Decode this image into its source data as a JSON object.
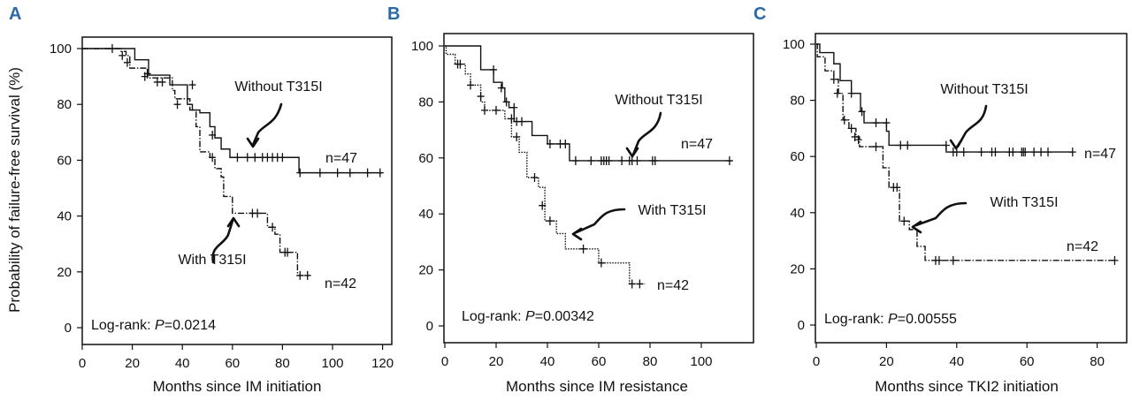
{
  "colors": {
    "panel_letter": "#2a6aa6",
    "ink": "#111111"
  },
  "chart_data": [
    {
      "type": "line",
      "panel": "A",
      "ylabel": "Probability of failure-free survival (%)",
      "xlabel": "Months since IM initiation",
      "xlim": [
        0,
        120
      ],
      "ylim": [
        0,
        100
      ],
      "xticks": [
        "0",
        "20",
        "40",
        "60",
        "80",
        "100",
        "120"
      ],
      "yticks": [
        "0",
        "20",
        "40",
        "60",
        "80",
        "100"
      ],
      "annotation": "Log-rank: ",
      "p_label": "P",
      "p_value": "=0.0214",
      "series": [
        {
          "name": "Without T315I",
          "n_label": "n=47",
          "style": "solid",
          "end": 120,
          "steps": [
            [
              21,
              96
            ],
            [
              26.5,
              90.5
            ],
            [
              35,
              87
            ],
            [
              42,
              80
            ],
            [
              44,
              78
            ],
            [
              47,
              77
            ],
            [
              51,
              72
            ],
            [
              53,
              68
            ],
            [
              55.5,
              64
            ],
            [
              59,
              61
            ],
            [
              86.6,
              55.5
            ]
          ],
          "censored": [
            [
              12,
              100
            ],
            [
              26,
              91
            ],
            [
              44,
              87
            ],
            [
              52,
              69
            ],
            [
              62,
              61
            ],
            [
              66,
              61
            ],
            [
              69,
              61
            ],
            [
              72,
              61
            ],
            [
              74,
              61
            ],
            [
              76,
              61
            ],
            [
              78,
              61
            ],
            [
              80,
              61
            ],
            [
              87,
              55.5
            ],
            [
              95,
              55.5
            ],
            [
              102,
              55.5
            ],
            [
              107,
              55.5
            ],
            [
              114,
              55.5
            ],
            [
              119,
              55.5
            ]
          ]
        },
        {
          "name": "With T315I",
          "n_label": "n=42",
          "style": "dashdot",
          "end": 91,
          "steps": [
            [
              15.5,
              99
            ],
            [
              17.5,
              97.5
            ],
            [
              19,
              93
            ],
            [
              26,
              89.5
            ],
            [
              36,
              85
            ],
            [
              37,
              82
            ],
            [
              43,
              78
            ],
            [
              45.5,
              72
            ],
            [
              47,
              63
            ],
            [
              51,
              61
            ],
            [
              53,
              57
            ],
            [
              55.5,
              54
            ],
            [
              56.5,
              47
            ],
            [
              60,
              41
            ],
            [
              74,
              36
            ],
            [
              77,
              33.5
            ],
            [
              79,
              27
            ],
            [
              86,
              18.7
            ]
          ],
          "censored": [
            [
              16,
              97.5
            ],
            [
              18,
              95
            ],
            [
              25,
              90
            ],
            [
              30,
              88
            ],
            [
              32,
              88
            ],
            [
              38,
              80
            ],
            [
              52,
              61
            ],
            [
              68,
              41
            ],
            [
              70,
              41
            ],
            [
              76,
              36
            ],
            [
              81,
              27
            ],
            [
              82,
              27
            ],
            [
              87,
              18.7
            ],
            [
              90,
              18.7
            ]
          ]
        }
      ],
      "labels": {
        "without": "Without T315I",
        "with": "With T315I"
      }
    },
    {
      "type": "line",
      "panel": "B",
      "xlabel": "Months since IM resistance",
      "xlim": [
        0,
        118
      ],
      "ylim": [
        0,
        100
      ],
      "xticks": [
        "0",
        "20",
        "40",
        "60",
        "80",
        "100"
      ],
      "yticks": [
        "0",
        "20",
        "40",
        "60",
        "80",
        "100"
      ],
      "annotation": "Log-rank: ",
      "p_label": "P",
      "p_value": "=0.00342",
      "series": [
        {
          "name": "Without T315I",
          "n_label": "n=47",
          "style": "solid",
          "end": 112,
          "steps": [
            [
              14,
              91.5
            ],
            [
              19,
              87
            ],
            [
              22.4,
              85
            ],
            [
              23.4,
              80
            ],
            [
              25,
              78
            ],
            [
              27,
              73
            ],
            [
              34,
              68
            ],
            [
              40,
              65
            ],
            [
              48.6,
              59
            ]
          ],
          "censored": [
            [
              19,
              91.5
            ],
            [
              22,
              85
            ],
            [
              24,
              80
            ],
            [
              27,
              78
            ],
            [
              28,
              73
            ],
            [
              30,
              73
            ],
            [
              41,
              65
            ],
            [
              45,
              65
            ],
            [
              47,
              65
            ],
            [
              51,
              59
            ],
            [
              57,
              59
            ],
            [
              61,
              59
            ],
            [
              62,
              59
            ],
            [
              63,
              59
            ],
            [
              64,
              59
            ],
            [
              69,
              59
            ],
            [
              72,
              59
            ],
            [
              73,
              59
            ],
            [
              75,
              59
            ],
            [
              81,
              59
            ],
            [
              82,
              59
            ],
            [
              111,
              59
            ]
          ]
        },
        {
          "name": "With T315I",
          "n_label": "n=42",
          "style": "dotted",
          "end": 78,
          "steps": [
            [
              0.5,
              97
            ],
            [
              4,
              93.5
            ],
            [
              8,
              90
            ],
            [
              10,
              86
            ],
            [
              14,
              80
            ],
            [
              15.5,
              77
            ],
            [
              23.4,
              74
            ],
            [
              26,
              67.5
            ],
            [
              29,
              62
            ],
            [
              32,
              53
            ],
            [
              36.5,
              49.5
            ],
            [
              39,
              37.5
            ],
            [
              43.5,
              33
            ],
            [
              47,
              27.5
            ],
            [
              60,
              22.5
            ],
            [
              72,
              15
            ]
          ],
          "censored": [
            [
              5,
              93.5
            ],
            [
              6,
              93.5
            ],
            [
              10,
              86
            ],
            [
              14,
              82
            ],
            [
              15.5,
              77
            ],
            [
              20,
              77
            ],
            [
              26,
              74
            ],
            [
              28,
              67.5
            ],
            [
              35,
              53
            ],
            [
              38,
              43
            ],
            [
              41,
              37.5
            ],
            [
              54,
              27.5
            ],
            [
              61,
              22.5
            ],
            [
              73,
              15
            ],
            [
              76,
              15
            ]
          ]
        }
      ],
      "labels": {
        "without": "Without T315I",
        "with": "With T315I"
      }
    },
    {
      "type": "line",
      "panel": "C",
      "xlabel": "Months since TKI2 initiation",
      "xlim": [
        0,
        88
      ],
      "ylim": [
        0,
        100
      ],
      "xticks": [
        "0",
        "20",
        "40",
        "60",
        "80"
      ],
      "yticks": [
        "0",
        "20",
        "40",
        "60",
        "80",
        "100"
      ],
      "annotation": "Log-rank: ",
      "p_label": "P",
      "p_value": "=0.00555",
      "series": [
        {
          "name": "Without T315I",
          "n_label": "n=47",
          "style": "solid",
          "end": 73,
          "steps": [
            [
              1,
              97
            ],
            [
              5,
              93
            ],
            [
              6.8,
              87
            ],
            [
              10,
              82.5
            ],
            [
              12.6,
              76
            ],
            [
              13.6,
              72
            ],
            [
              20,
              69
            ],
            [
              20.7,
              64
            ],
            [
              37,
              61.6
            ]
          ],
          "censored": [
            [
              10,
              82.5
            ],
            [
              13,
              76
            ],
            [
              17,
              72
            ],
            [
              20,
              72
            ],
            [
              24,
              64
            ],
            [
              26,
              64
            ],
            [
              37,
              64
            ],
            [
              39,
              61.6
            ],
            [
              40,
              61.6
            ],
            [
              42,
              61.6
            ],
            [
              47,
              61.6
            ],
            [
              50,
              61.6
            ],
            [
              51,
              61.6
            ],
            [
              55,
              61.6
            ],
            [
              56,
              61.6
            ],
            [
              58.5,
              61.6
            ],
            [
              59,
              61.6
            ],
            [
              59.5,
              61.6
            ],
            [
              62,
              61.6
            ],
            [
              64,
              61.6
            ],
            [
              66,
              61.6
            ],
            [
              73,
              61.6
            ]
          ]
        },
        {
          "name": "With T315I",
          "n_label": "n=42",
          "style": "dashdot",
          "end": 85,
          "steps": [
            [
              0.3,
              95.5
            ],
            [
              2.5,
              90.5
            ],
            [
              5,
              87.5
            ],
            [
              6.3,
              82.5
            ],
            [
              7.6,
              73
            ],
            [
              9.3,
              70
            ],
            [
              11.3,
              67
            ],
            [
              12.3,
              63.5
            ],
            [
              19,
              56
            ],
            [
              20.7,
              49
            ],
            [
              23.7,
              37
            ],
            [
              26.5,
              34
            ],
            [
              28.7,
              28
            ],
            [
              31,
              23
            ]
          ],
          "censored": [
            [
              5,
              87.5
            ],
            [
              6,
              82.5
            ],
            [
              8,
              73
            ],
            [
              10,
              70
            ],
            [
              11,
              67
            ],
            [
              12,
              66
            ],
            [
              17,
              63.5
            ],
            [
              22,
              49
            ],
            [
              23,
              49
            ],
            [
              25,
              37
            ],
            [
              34,
              23
            ],
            [
              35,
              23
            ],
            [
              39,
              23
            ],
            [
              85,
              23
            ]
          ]
        }
      ],
      "labels": {
        "without": "Without T315I",
        "with": "With T315I"
      }
    }
  ]
}
